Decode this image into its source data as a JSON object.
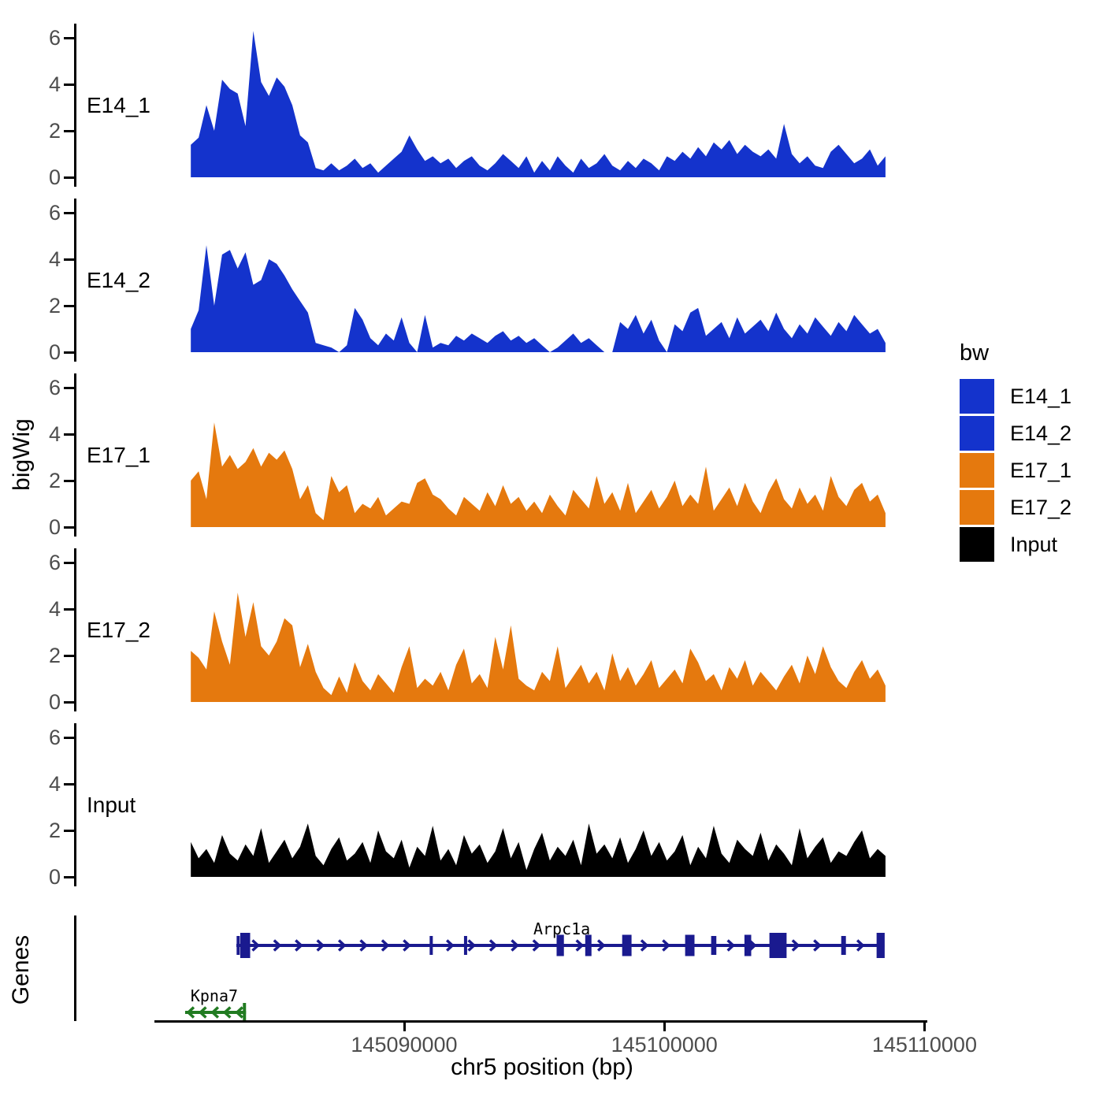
{
  "chart_data": {
    "type": "area",
    "title": "",
    "xlabel": "chr5 position (bp)",
    "ylabel": "bigWig",
    "genes_track_label": "Genes",
    "legend_title": "bw",
    "xlim": [
      145080400,
      145110200
    ],
    "ylim": [
      0,
      6.6
    ],
    "yticks": [
      0,
      2,
      4,
      6
    ],
    "xticks": [
      145090000,
      145100000,
      145110000
    ],
    "grid": false,
    "legend_position": "right",
    "x_start": 145081800,
    "x_step": 300,
    "series": [
      {
        "name": "E14_1",
        "color": "#1433CC",
        "values": [
          1.4,
          1.7,
          3.1,
          2.0,
          4.2,
          3.8,
          3.6,
          2.2,
          6.3,
          4.1,
          3.5,
          4.3,
          3.9,
          3.1,
          1.8,
          1.5,
          0.4,
          0.3,
          0.6,
          0.3,
          0.5,
          0.8,
          0.4,
          0.6,
          0.2,
          0.5,
          0.8,
          1.1,
          1.8,
          1.2,
          0.7,
          0.9,
          0.6,
          0.8,
          0.4,
          0.7,
          0.9,
          0.5,
          0.3,
          0.6,
          1.0,
          0.7,
          0.4,
          0.9,
          0.2,
          0.7,
          0.3,
          0.9,
          0.5,
          0.2,
          0.8,
          0.4,
          0.6,
          1.0,
          0.5,
          0.3,
          0.7,
          0.4,
          0.8,
          0.6,
          0.3,
          0.9,
          0.7,
          1.1,
          0.8,
          1.3,
          0.9,
          1.5,
          1.2,
          1.6,
          1.0,
          1.4,
          1.1,
          0.9,
          1.2,
          0.8,
          2.3,
          1.0,
          0.6,
          0.9,
          0.5,
          0.4,
          1.1,
          1.4,
          1.0,
          0.6,
          0.8,
          1.2,
          0.5,
          0.9
        ]
      },
      {
        "name": "E14_2",
        "color": "#1433CC",
        "values": [
          1.0,
          1.8,
          4.6,
          2.0,
          4.2,
          4.4,
          3.6,
          4.3,
          2.9,
          3.1,
          4.0,
          3.8,
          3.3,
          2.7,
          2.2,
          1.7,
          0.4,
          0.3,
          0.2,
          0.0,
          0.3,
          1.9,
          1.4,
          0.6,
          0.3,
          0.8,
          0.5,
          1.5,
          0.4,
          0.0,
          1.6,
          0.2,
          0.4,
          0.3,
          0.7,
          0.5,
          0.8,
          0.6,
          0.4,
          0.7,
          0.9,
          0.5,
          0.7,
          0.4,
          0.6,
          0.3,
          0.0,
          0.2,
          0.5,
          0.8,
          0.4,
          0.6,
          0.3,
          0.0,
          0.0,
          1.3,
          1.0,
          1.6,
          0.8,
          1.4,
          0.5,
          0.0,
          1.2,
          0.9,
          1.7,
          1.9,
          0.7,
          1.0,
          1.3,
          0.6,
          1.5,
          0.8,
          1.1,
          1.4,
          0.9,
          1.7,
          1.0,
          0.6,
          1.2,
          0.8,
          1.5,
          1.1,
          0.7,
          1.3,
          0.9,
          1.6,
          1.2,
          0.8,
          1.0,
          0.4
        ]
      },
      {
        "name": "E17_1",
        "color": "#E5790E",
        "values": [
          2.0,
          2.4,
          1.2,
          4.5,
          2.6,
          3.1,
          2.5,
          2.8,
          3.4,
          2.6,
          3.2,
          2.9,
          3.3,
          2.5,
          1.2,
          1.8,
          0.6,
          0.3,
          2.2,
          1.5,
          1.8,
          0.6,
          1.0,
          0.8,
          1.3,
          0.5,
          0.8,
          1.1,
          1.0,
          1.9,
          2.1,
          1.4,
          1.2,
          0.8,
          0.5,
          1.3,
          1.0,
          0.7,
          1.5,
          0.9,
          1.8,
          1.0,
          1.3,
          0.7,
          1.1,
          0.6,
          1.4,
          0.9,
          0.5,
          1.6,
          1.2,
          0.8,
          2.2,
          1.0,
          1.5,
          0.7,
          1.9,
          0.6,
          1.1,
          1.6,
          0.8,
          1.3,
          2.0,
          0.9,
          1.4,
          1.0,
          2.6,
          0.7,
          1.2,
          1.7,
          0.9,
          1.9,
          1.1,
          0.6,
          1.5,
          2.1,
          1.2,
          0.8,
          1.7,
          1.0,
          1.4,
          0.7,
          2.2,
          1.3,
          0.9,
          1.6,
          1.9,
          1.1,
          1.4,
          0.6
        ]
      },
      {
        "name": "E17_2",
        "color": "#E5790E",
        "values": [
          2.2,
          1.9,
          1.4,
          3.9,
          2.6,
          1.6,
          4.7,
          2.8,
          4.3,
          2.4,
          2.0,
          2.6,
          3.6,
          3.3,
          1.5,
          2.5,
          1.3,
          0.6,
          0.3,
          1.1,
          0.4,
          1.7,
          0.9,
          0.5,
          1.2,
          0.8,
          0.4,
          1.5,
          2.4,
          0.6,
          1.0,
          0.7,
          1.3,
          0.5,
          1.6,
          2.3,
          0.8,
          1.2,
          0.6,
          2.8,
          1.4,
          3.3,
          1.0,
          0.7,
          0.5,
          1.3,
          0.9,
          2.4,
          0.6,
          1.1,
          1.6,
          0.8,
          1.3,
          0.5,
          2.1,
          0.9,
          1.5,
          0.7,
          1.2,
          1.8,
          0.6,
          1.0,
          1.4,
          0.8,
          2.3,
          1.7,
          0.9,
          1.2,
          0.5,
          1.5,
          1.0,
          1.8,
          0.7,
          1.3,
          0.9,
          0.5,
          1.1,
          1.6,
          0.8,
          2.0,
          1.2,
          2.4,
          1.5,
          0.9,
          0.6,
          1.3,
          1.8,
          1.0,
          1.4,
          0.7
        ]
      },
      {
        "name": "Input",
        "color": "#000000",
        "values": [
          1.5,
          0.8,
          1.2,
          0.6,
          1.8,
          1.0,
          0.7,
          1.4,
          0.9,
          2.1,
          0.6,
          1.1,
          1.6,
          0.8,
          1.3,
          2.3,
          0.9,
          0.5,
          1.2,
          1.7,
          0.7,
          1.0,
          1.5,
          0.6,
          2.0,
          1.1,
          0.8,
          1.6,
          0.4,
          1.3,
          0.9,
          2.2,
          0.7,
          1.2,
          0.5,
          1.8,
          1.0,
          1.4,
          0.6,
          1.1,
          2.1,
          0.8,
          1.5,
          0.3,
          1.2,
          1.9,
          0.7,
          1.3,
          0.9,
          1.6,
          0.5,
          2.3,
          1.0,
          1.4,
          0.8,
          1.7,
          0.6,
          1.2,
          2.0,
          0.9,
          1.5,
          0.7,
          1.1,
          1.8,
          0.5,
          1.3,
          0.8,
          2.2,
          1.0,
          0.6,
          1.6,
          1.2,
          0.9,
          1.9,
          0.7,
          1.4,
          1.0,
          0.5,
          2.1,
          0.8,
          1.3,
          1.7,
          0.6,
          1.1,
          0.9,
          1.5,
          2.0,
          0.8,
          1.2,
          0.9
        ]
      }
    ],
    "genes": [
      {
        "name": "Arpc1a",
        "strand": "+",
        "color": "#1A1A8F",
        "start": 145083550,
        "end": 145108460,
        "label_bp": 145096060,
        "exons": [
          [
            145083560,
            145083680,
            "t"
          ],
          [
            145083700,
            145084080,
            "l"
          ],
          [
            145090980,
            145091100,
            "t"
          ],
          [
            145092300,
            145092420,
            "t"
          ],
          [
            145095860,
            145096140,
            "m"
          ],
          [
            145096960,
            145097200,
            "m"
          ],
          [
            145098380,
            145098740,
            "m"
          ],
          [
            145100800,
            145101160,
            "m"
          ],
          [
            145101800,
            145102000,
            "t"
          ],
          [
            145103080,
            145103340,
            "m"
          ],
          [
            145104040,
            145104700,
            "l"
          ],
          [
            145106800,
            145106980,
            "t"
          ],
          [
            145108160,
            145108470,
            "l"
          ]
        ]
      },
      {
        "name": "Kpna7",
        "strand": "-",
        "color": "#217B21",
        "start": 145081580,
        "end": 145083920,
        "label_bp": 145082700,
        "exons": [
          [
            145083800,
            145083920,
            "t"
          ]
        ]
      }
    ],
    "legend_entries": [
      {
        "label": "E14_1",
        "color": "#1433CC"
      },
      {
        "label": "E14_2",
        "color": "#1433CC"
      },
      {
        "label": "E17_1",
        "color": "#E5790E"
      },
      {
        "label": "E17_2",
        "color": "#E5790E"
      },
      {
        "label": "Input",
        "color": "#000000"
      }
    ]
  },
  "colors": {
    "tick_text": "#4d4d4d",
    "axis": "#000000",
    "background": "#ffffff"
  }
}
